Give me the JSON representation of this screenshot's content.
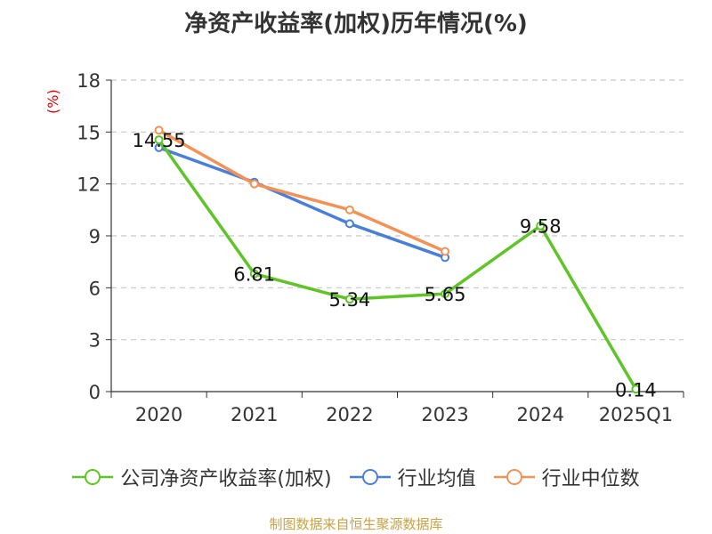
{
  "chart_data": {
    "type": "line",
    "title": "净资产收益率(加权)历年情况(%)",
    "ylabel": "(%)",
    "xlabel": "",
    "categories": [
      "2020",
      "2021",
      "2022",
      "2023",
      "2024",
      "2025Q1"
    ],
    "ylim": [
      0,
      18
    ],
    "yticks": [
      0,
      3,
      6,
      9,
      12,
      15,
      18
    ],
    "grid": true,
    "legend_position": "bottom",
    "series": [
      {
        "name": "公司净资产收益率(加权)",
        "color": "#5ec427",
        "values": [
          14.55,
          6.81,
          5.34,
          5.65,
          9.58,
          0.14
        ],
        "labels": [
          "14.55",
          "6.81",
          "5.34",
          "5.65",
          "9.58",
          "0.14"
        ]
      },
      {
        "name": "行业均值",
        "color": "#4a7fd9",
        "values": [
          14.1,
          12.1,
          9.7,
          7.75,
          null,
          null
        ]
      },
      {
        "name": "行业中位数",
        "color": "#f39257",
        "values": [
          15.1,
          12.0,
          10.5,
          8.1,
          null,
          null
        ]
      }
    ]
  },
  "source": "制图数据来自恒生聚源数据库"
}
